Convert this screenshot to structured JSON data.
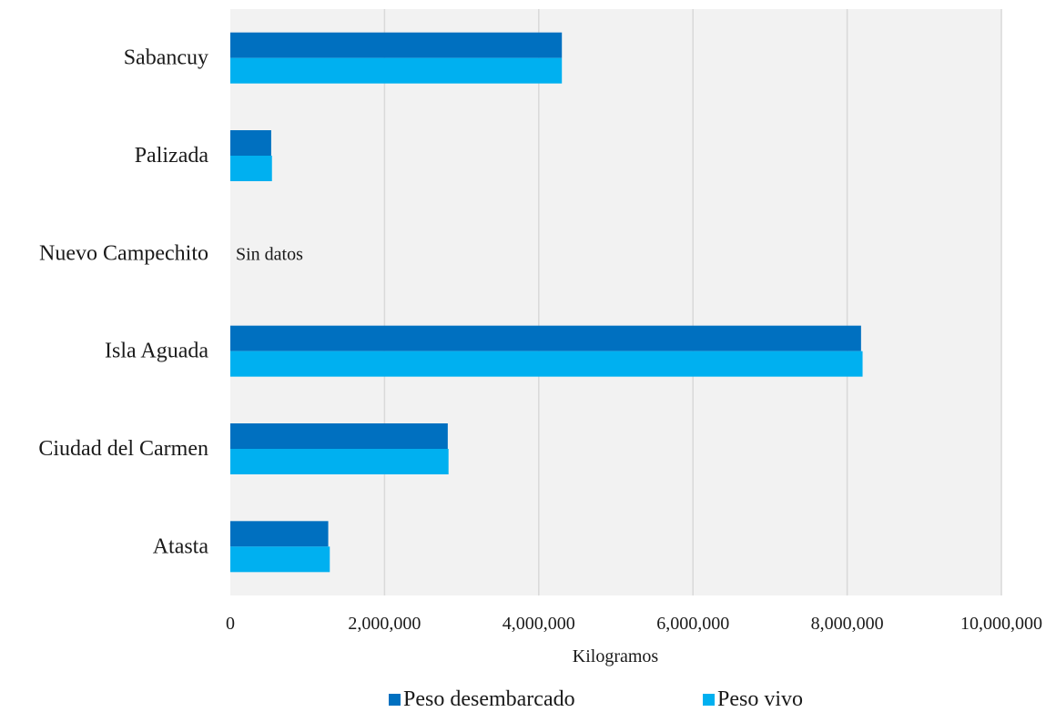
{
  "colors": {
    "plot_background": "#f2f2f2",
    "gridline": "#d9d9d9",
    "series_dark": "#0070c0",
    "series_light": "#00b0f0"
  },
  "chart_data": {
    "type": "bar",
    "orientation": "horizontal",
    "categories": [
      "Atasta",
      "Ciudad del Carmen",
      "Isla Aguada",
      "Nuevo Campechito",
      "Palizada",
      "Sabancuy"
    ],
    "series": [
      {
        "name": "Peso desembarcado",
        "color": "#0070c0",
        "values": [
          1270000,
          2820000,
          8180000,
          null,
          530000,
          4300000
        ]
      },
      {
        "name": "Peso vivo",
        "color": "#00b0f0",
        "values": [
          1290000,
          2830000,
          8200000,
          null,
          540000,
          4300000
        ]
      }
    ],
    "annotations": [
      {
        "category": "Nuevo Campechito",
        "text": "Sin datos"
      }
    ],
    "xlabel": "Kilogramos",
    "ylabel": "",
    "title": "",
    "xlim": [
      0,
      10000000
    ],
    "xticks": [
      0,
      2000000,
      4000000,
      6000000,
      8000000,
      10000000
    ],
    "xtick_labels": [
      "0",
      "2,000,000",
      "4,000,000",
      "6,000,000",
      "8,000,000",
      "10,000,000"
    ],
    "grid": "vertical",
    "legend": "bottom-center"
  }
}
